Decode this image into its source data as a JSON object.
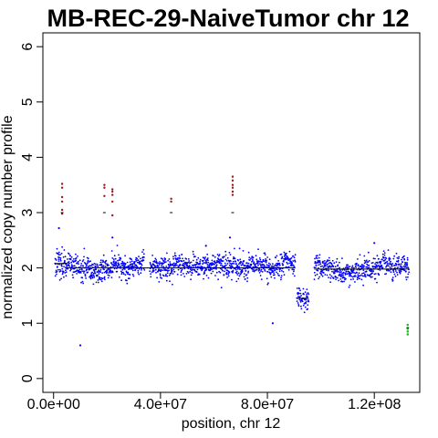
{
  "chart_data": {
    "type": "scatter",
    "title": "MB-REC-29-NaiveTumor chr 12",
    "xlabel": "position, chr 12",
    "ylabel": "normalized copy number profile",
    "xlim": [
      -4000000,
      137000000
    ],
    "ylim": [
      -0.25,
      6.25
    ],
    "x_ticks": [
      0,
      40000000,
      80000000,
      120000000
    ],
    "x_tick_labels": [
      "0.0e+00",
      "4.0e+07",
      "8.0e+07",
      "1.2e+08"
    ],
    "y_ticks": [
      0,
      1,
      2,
      3,
      4,
      5,
      6
    ],
    "y_tick_labels": [
      "0",
      "1",
      "2",
      "3",
      "4",
      "5",
      "6"
    ],
    "grid": false,
    "legend": "none",
    "colors": {
      "normal": "#0000ff",
      "gain": "#a0161d",
      "loss": "#22c022",
      "segment": "#000000"
    },
    "regions": [
      {
        "x0": 500000,
        "x1": 5000000,
        "mean": 2.1,
        "sd": 0.16
      },
      {
        "x0": 5000000,
        "x1": 34000000,
        "mean": 2.02,
        "sd": 0.1
      },
      {
        "x0": 36000000,
        "x1": 90500000,
        "mean": 2.02,
        "sd": 0.1
      },
      {
        "x0": 91000000,
        "x1": 95500000,
        "mean": 1.5,
        "sd": 0.09
      },
      {
        "x0": 97500000,
        "x1": 133000000,
        "mean": 2.0,
        "sd": 0.1
      }
    ],
    "segments": [
      {
        "x0": 500000,
        "x1": 5000000,
        "y": 2.08
      },
      {
        "x0": 5000000,
        "x1": 90500000,
        "y": 2.0
      },
      {
        "x0": 91000000,
        "x1": 95500000,
        "y": 1.45
      },
      {
        "x0": 97500000,
        "x1": 132500000,
        "y": 1.98
      }
    ],
    "outliers_normal": [
      {
        "x": 10000000,
        "y": 0.6
      },
      {
        "x": 82000000,
        "y": 1.0
      },
      {
        "x": 2000000,
        "y": 2.72
      },
      {
        "x": 22000000,
        "y": 2.55
      },
      {
        "x": 66000000,
        "y": 2.55
      },
      {
        "x": 57000000,
        "y": 2.4
      },
      {
        "x": 120000000,
        "y": 2.45
      }
    ],
    "gain_points": [
      {
        "x": 3200000,
        "y": 3.52
      },
      {
        "x": 3200000,
        "y": 3.45
      },
      {
        "x": 3200000,
        "y": 3.28
      },
      {
        "x": 3200000,
        "y": 3.2
      },
      {
        "x": 3200000,
        "y": 3.05
      },
      {
        "x": 3200000,
        "y": 2.98
      },
      {
        "x": 19000000,
        "y": 3.5
      },
      {
        "x": 19000000,
        "y": 3.45
      },
      {
        "x": 19000000,
        "y": 3.3
      },
      {
        "x": 22000000,
        "y": 3.42
      },
      {
        "x": 22000000,
        "y": 3.38
      },
      {
        "x": 22000000,
        "y": 3.32
      },
      {
        "x": 22000000,
        "y": 3.2
      },
      {
        "x": 22000000,
        "y": 2.95
      },
      {
        "x": 44000000,
        "y": 3.25
      },
      {
        "x": 44000000,
        "y": 3.2
      },
      {
        "x": 67000000,
        "y": 3.65
      },
      {
        "x": 67000000,
        "y": 3.58
      },
      {
        "x": 67000000,
        "y": 3.5
      },
      {
        "x": 67000000,
        "y": 3.45
      },
      {
        "x": 67000000,
        "y": 3.38
      },
      {
        "x": 67000000,
        "y": 3.32
      }
    ],
    "gain_segments": [
      {
        "x0": 2700000,
        "x1": 3700000,
        "y": 3.0
      },
      {
        "x0": 18500000,
        "x1": 19500000,
        "y": 3.0
      },
      {
        "x0": 43500000,
        "x1": 44500000,
        "y": 3.0
      },
      {
        "x0": 66500000,
        "x1": 67500000,
        "y": 3.0
      }
    ],
    "loss_points": [
      {
        "x": 132500000,
        "y": 0.97
      },
      {
        "x": 132500000,
        "y": 0.9
      },
      {
        "x": 132500000,
        "y": 0.85
      },
      {
        "x": 132500000,
        "y": 0.8
      }
    ],
    "loss_segments": [
      {
        "x0": 132000000,
        "x1": 133000000,
        "y": 0.92
      }
    ]
  }
}
